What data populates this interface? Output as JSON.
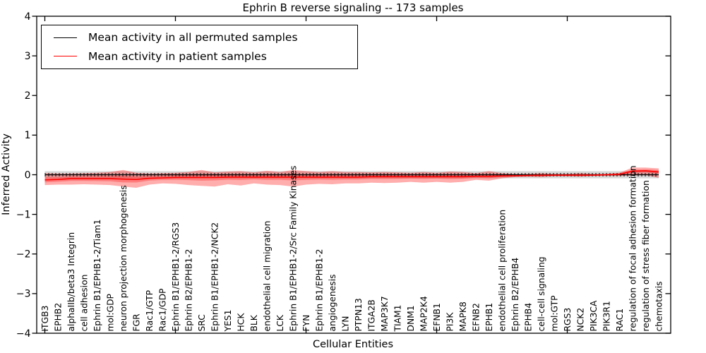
{
  "chart_data": {
    "type": "line",
    "title": "Ephrin B reverse signaling -- 173 samples",
    "xlabel": "Cellular Entities",
    "ylabel": "Inferred Activity",
    "ylim": [
      -4,
      4
    ],
    "grid": false,
    "legend_position": "upper left",
    "n_samples": 173,
    "ytick_labels": [
      "4",
      "3",
      "2",
      "1",
      "0",
      "−1",
      "−2",
      "−3",
      "−4"
    ],
    "ytick_values": [
      4,
      3,
      2,
      1,
      0,
      -1,
      -2,
      -3,
      -4
    ],
    "major_tick_indices": [
      0,
      10,
      20,
      30,
      40
    ],
    "categories": [
      "ITGB3",
      "EPHB2",
      "alphaIIb/beta3 Integrin",
      "cell adhesion",
      "Ephrin B1/EPHB1-2/Tiam1",
      "mol:GDP",
      "neuron projection morphogenesis",
      "FGR",
      "Rac1/GTP",
      "Rac1/GDP",
      "Ephrin B1/EPHB1-2/RGS3",
      "Ephrin B2/EPHB1-2",
      "SRC",
      "Ephrin B1/EPHB1-2/NCK2",
      "YES1",
      "HCK",
      "BLK",
      "endothelial cell migration",
      "LCK",
      "Ephrin B1/EPHB1-2/Src Family Kinases",
      "FYN",
      "Ephrin B1/EPHB1-2",
      "angiogenesis",
      "LYN",
      "PTPN13",
      "ITGA2B",
      "MAP3K7",
      "TIAM1",
      "DNM1",
      "MAP2K4",
      "EFNB1",
      "PI3K",
      "MAPK8",
      "EFNB2",
      "EPHB1",
      "endothelial cell proliferation",
      "Ephrin B2/EPHB4",
      "EPHB4",
      "cell-cell signaling",
      "mol:GTP",
      "RGS3",
      "NCK2",
      "PIK3CA",
      "PIK3R1",
      "RAC1",
      "regulation of focal adhesion formation",
      "regulation of stress fiber formation",
      "chemotaxis"
    ],
    "series": [
      {
        "name": "Mean activity in all permuted samples",
        "color": "#000000",
        "band_color": "rgba(0,0,0,0.15)",
        "mean_constant": 0,
        "band_halfwidth": 0.09,
        "sample_tick_markers": true
      },
      {
        "name": "Mean activity in patient samples",
        "color": "#ff0000",
        "band_color": "rgba(255,0,0,0.32)",
        "inner_band_color": "rgba(255,0,0,0.28)",
        "mean": [
          -0.13,
          -0.12,
          -0.1,
          -0.1,
          -0.1,
          -0.1,
          -0.11,
          -0.12,
          -0.09,
          -0.08,
          -0.07,
          -0.07,
          -0.07,
          -0.07,
          -0.06,
          -0.06,
          -0.06,
          -0.06,
          -0.06,
          -0.06,
          -0.06,
          -0.06,
          -0.06,
          -0.06,
          -0.06,
          -0.05,
          -0.05,
          -0.05,
          -0.05,
          -0.05,
          -0.05,
          -0.05,
          -0.05,
          -0.04,
          -0.04,
          -0.03,
          -0.025,
          -0.02,
          -0.015,
          -0.01,
          -0.01,
          -0.01,
          -0.01,
          0.0,
          0.01,
          0.09,
          0.1,
          0.07
        ],
        "band_upper": [
          0.04,
          0.03,
          0.03,
          0.04,
          0.05,
          0.07,
          0.12,
          0.05,
          0.03,
          0.04,
          0.05,
          0.07,
          0.12,
          0.06,
          0.08,
          0.09,
          0.06,
          0.1,
          0.07,
          0.12,
          0.09,
          0.07,
          0.09,
          0.07,
          0.07,
          0.06,
          0.07,
          0.06,
          0.05,
          0.07,
          0.05,
          0.08,
          0.07,
          0.04,
          0.09,
          0.04,
          0.02,
          0.02,
          0.04,
          0.02,
          0.02,
          0.04,
          0.02,
          0.02,
          0.05,
          0.18,
          0.18,
          0.16
        ],
        "band_lower": [
          -0.26,
          -0.25,
          -0.25,
          -0.24,
          -0.25,
          -0.26,
          -0.3,
          -0.33,
          -0.25,
          -0.22,
          -0.23,
          -0.26,
          -0.28,
          -0.3,
          -0.24,
          -0.27,
          -0.22,
          -0.25,
          -0.26,
          -0.3,
          -0.25,
          -0.23,
          -0.24,
          -0.22,
          -0.22,
          -0.2,
          -0.21,
          -0.2,
          -0.18,
          -0.2,
          -0.18,
          -0.2,
          -0.18,
          -0.13,
          -0.15,
          -0.09,
          -0.06,
          -0.05,
          -0.06,
          -0.04,
          -0.04,
          -0.05,
          -0.03,
          -0.03,
          -0.03,
          -0.02,
          -0.01,
          -0.08
        ]
      }
    ]
  }
}
